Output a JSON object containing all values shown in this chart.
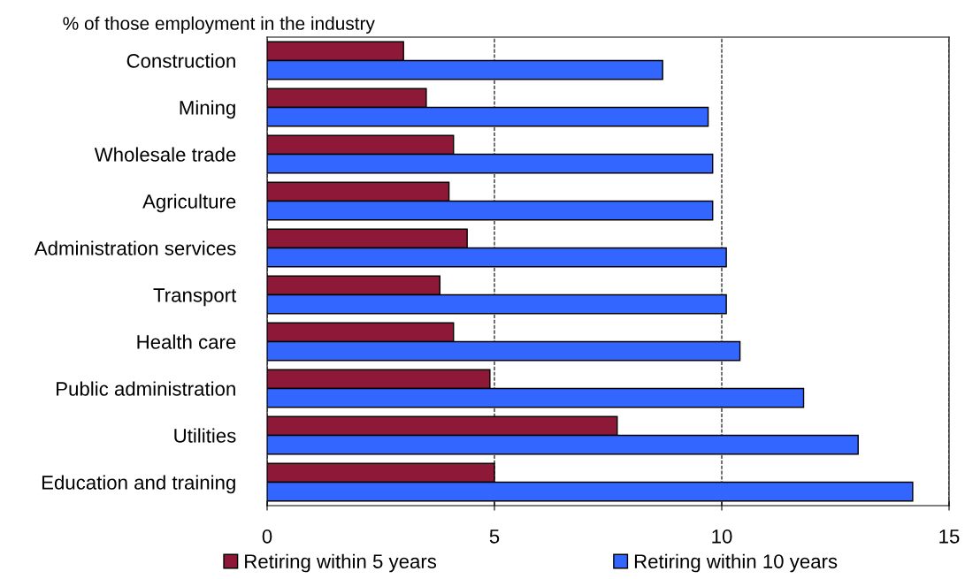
{
  "chart_data": {
    "type": "bar",
    "orientation": "horizontal",
    "title": "% of those employment in the industry",
    "categories": [
      "Construction",
      "Mining",
      "Wholesale trade",
      "Agriculture",
      "Administration services",
      "Transport",
      "Health care",
      "Public administration",
      "Utilities",
      "Education and training"
    ],
    "series": [
      {
        "name": "Retiring within 5 years",
        "color": "#8e1838",
        "values": [
          3.0,
          3.5,
          4.1,
          4.0,
          4.4,
          3.8,
          4.1,
          4.9,
          7.7,
          5.0
        ]
      },
      {
        "name": "Retiring within 10 years",
        "color": "#3366ff",
        "values": [
          8.7,
          9.7,
          9.8,
          9.8,
          10.1,
          10.1,
          10.4,
          11.8,
          13.0,
          14.2
        ]
      }
    ],
    "xlim": [
      0,
      15
    ],
    "xticks": [
      0,
      5,
      10,
      15
    ],
    "grid": "x",
    "legend": "bottom"
  }
}
